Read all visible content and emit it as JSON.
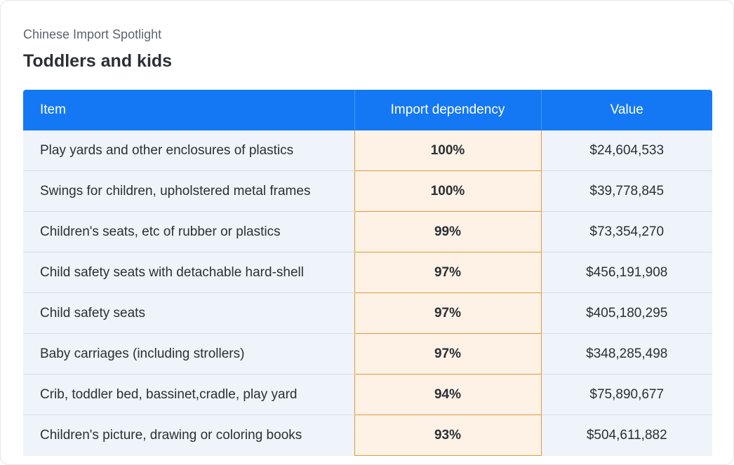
{
  "header": {
    "subtitle": "Chinese Import Spotlight",
    "title": "Toddlers and kids"
  },
  "colors": {
    "header_bg": "#1478f5",
    "row_bg": "#eff3fa",
    "highlight_bg": "#fdf2e5",
    "highlight_border": "#e8963c"
  },
  "chart_data": {
    "type": "table",
    "columns": [
      "Item",
      "Import dependency",
      "Value"
    ],
    "rows": [
      [
        "Play yards and other enclosures of plastics",
        "100%",
        "$24,604,533"
      ],
      [
        "Swings for children, upholstered metal frames",
        "100%",
        "$39,778,845"
      ],
      [
        "Children's seats, etc of rubber or plastics",
        "99%",
        "$73,354,270"
      ],
      [
        "Child safety seats with detachable hard-shell",
        "97%",
        "$456,191,908"
      ],
      [
        "Child safety seats",
        "97%",
        "$405,180,295"
      ],
      [
        "Baby carriages (including strollers)",
        "97%",
        "$348,285,498"
      ],
      [
        "Crib, toddler bed, bassinet,cradle, play yard",
        "94%",
        "$75,890,677"
      ],
      [
        "Children's picture, drawing or coloring books",
        "93%",
        "$504,611,882"
      ]
    ]
  }
}
